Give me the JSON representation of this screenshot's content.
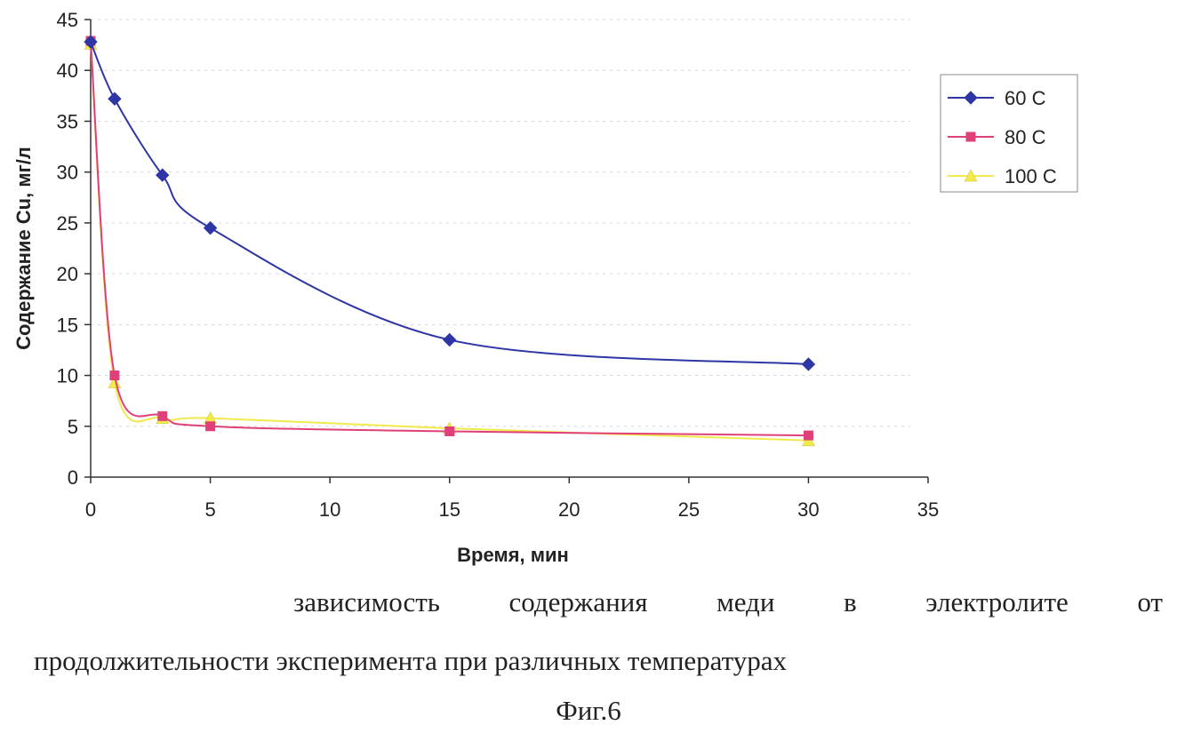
{
  "chart_data": {
    "type": "line",
    "xlabel": "Время, мин",
    "ylabel": "Содержание Cu, мг/л",
    "xlim": [
      0,
      35
    ],
    "ylim": [
      0,
      45
    ],
    "xticks": [
      0,
      5,
      10,
      15,
      20,
      25,
      30,
      35
    ],
    "yticks": [
      0,
      5,
      10,
      15,
      20,
      25,
      30,
      35,
      40,
      45
    ],
    "grid": "horizontal dashed",
    "legend_position": "right",
    "series": [
      {
        "name": "60 С",
        "color": "#2e36a6",
        "marker": "diamond",
        "x": [
          0,
          1,
          3,
          5,
          15,
          30
        ],
        "y": [
          42.8,
          37.2,
          29.7,
          24.5,
          13.5,
          11.1
        ]
      },
      {
        "name": "80 С",
        "color": "#e0407a",
        "marker": "square",
        "x": [
          0,
          1,
          3,
          5,
          15,
          30
        ],
        "y": [
          42.9,
          10.0,
          6.0,
          5.0,
          4.5,
          4.1
        ]
      },
      {
        "name": "100 С",
        "color": "#f2ea4a",
        "marker": "triangle",
        "x": [
          0,
          1,
          3,
          5,
          15,
          30
        ],
        "y": [
          42.6,
          9.3,
          5.8,
          5.8,
          4.8,
          3.6
        ]
      }
    ]
  },
  "caption": {
    "line1_words": [
      "зависимость",
      "содержания",
      "меди",
      "в",
      "электролите",
      "от"
    ],
    "line2": "продолжительности эксперимента при различных температурах",
    "figure_label": "Фиг.6"
  }
}
